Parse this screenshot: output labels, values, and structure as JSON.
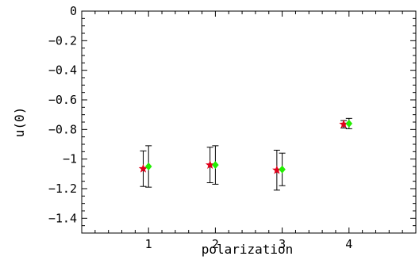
{
  "chart_data": {
    "type": "scatter",
    "title": "",
    "xlabel": "polarization",
    "ylabel": "u(0)",
    "xlim": [
      0,
      5
    ],
    "ylim": [
      -1.5,
      0
    ],
    "x_ticks": [
      1,
      2,
      3,
      4
    ],
    "x_tick_labels": [
      "1",
      "2",
      "3",
      "4"
    ],
    "y_ticks": [
      0,
      -0.2,
      -0.4,
      -0.6,
      -0.8,
      -1,
      -1.2,
      -1.4
    ],
    "y_tick_labels": [
      "0",
      "−0.2",
      "−0.4",
      "−0.6",
      "−0.8",
      "−1",
      "−1.2",
      "−1.4"
    ],
    "grid": false,
    "legend": "none",
    "series": [
      {
        "marker": "star",
        "color": "#e0001a",
        "points": [
          {
            "x": 0.92,
            "y": -1.065,
            "err": 0.12
          },
          {
            "x": 1.92,
            "y": -1.04,
            "err": 0.12
          },
          {
            "x": 2.92,
            "y": -1.075,
            "err": 0.135
          },
          {
            "x": 3.92,
            "y": -0.765,
            "err": 0.025
          }
        ]
      },
      {
        "marker": "diamond",
        "color": "#22ee00",
        "points": [
          {
            "x": 1.0,
            "y": -1.05,
            "err": 0.14
          },
          {
            "x": 2.0,
            "y": -1.04,
            "err": 0.13
          },
          {
            "x": 3.0,
            "y": -1.07,
            "err": 0.11
          },
          {
            "x": 4.0,
            "y": -0.76,
            "err": 0.035
          }
        ]
      }
    ]
  }
}
